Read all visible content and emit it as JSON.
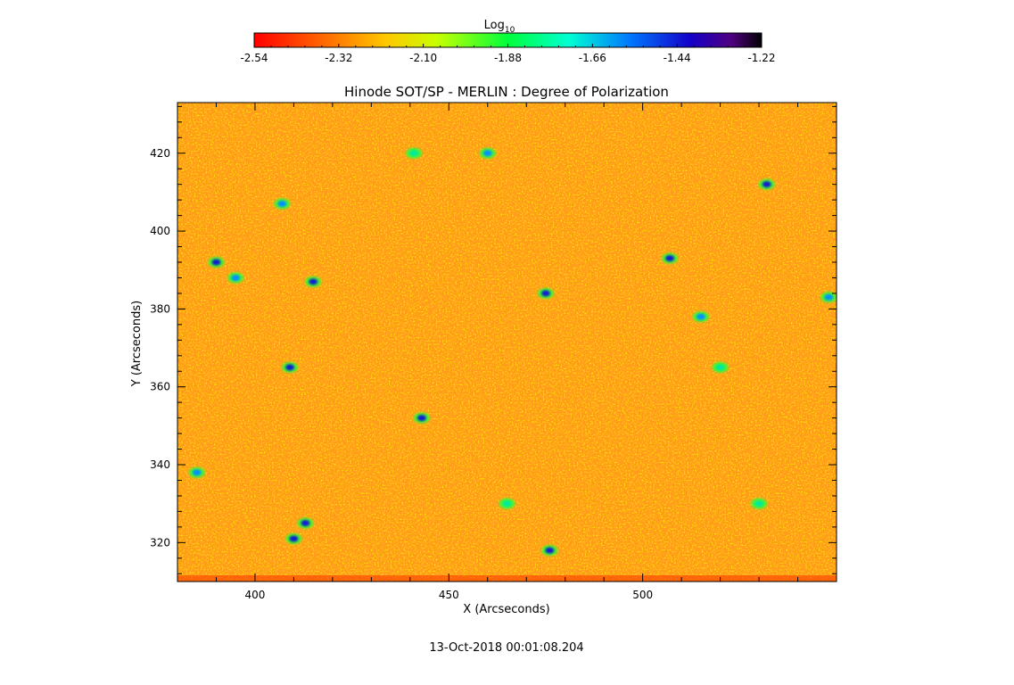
{
  "chart_data": {
    "type": "heatmap",
    "title": "Hinode SOT/SP - MERLIN : Degree of Polarization",
    "xlabel": "X (Arcseconds)",
    "ylabel": "Y (Arcseconds)",
    "xlim": [
      380,
      550
    ],
    "ylim": [
      310,
      433
    ],
    "x_ticks": [
      "400",
      "450",
      "500"
    ],
    "x_tick_values": [
      400,
      450,
      500
    ],
    "y_ticks": [
      "320",
      "340",
      "360",
      "380",
      "400",
      "420"
    ],
    "y_tick_values": [
      320,
      340,
      360,
      380,
      400,
      420
    ],
    "colorbar": {
      "label_base": "Log",
      "label_sub": "10",
      "range": [
        -2.54,
        -1.22
      ],
      "ticks": [
        "-2.54",
        "-2.32",
        "-2.10",
        "-1.88",
        "-1.66",
        "-1.44",
        "-1.22"
      ],
      "tick_values": [
        -2.54,
        -2.32,
        -2.1,
        -1.88,
        -1.66,
        -1.44,
        -1.22
      ],
      "colormap": "rainbow (red-orange-yellow-green-cyan-blue-purple-black)"
    },
    "field_description": "predominantly orange/yellow values near -2.4 with scattered green and blue patches up to about -1.5",
    "patches": [
      {
        "x": 390,
        "y": 392,
        "v": -1.45
      },
      {
        "x": 395,
        "y": 388,
        "v": -1.6
      },
      {
        "x": 407,
        "y": 407,
        "v": -1.6
      },
      {
        "x": 415,
        "y": 387,
        "v": -1.45
      },
      {
        "x": 409,
        "y": 365,
        "v": -1.5
      },
      {
        "x": 413,
        "y": 325,
        "v": -1.5
      },
      {
        "x": 410,
        "y": 321,
        "v": -1.55
      },
      {
        "x": 443,
        "y": 352,
        "v": -1.45
      },
      {
        "x": 475,
        "y": 384,
        "v": -1.5
      },
      {
        "x": 476,
        "y": 318,
        "v": -1.5
      },
      {
        "x": 507,
        "y": 393,
        "v": -1.55
      },
      {
        "x": 515,
        "y": 378,
        "v": -1.6
      },
      {
        "x": 532,
        "y": 412,
        "v": -1.45
      },
      {
        "x": 548,
        "y": 383,
        "v": -1.6
      },
      {
        "x": 441,
        "y": 420,
        "v": -1.75
      },
      {
        "x": 460,
        "y": 420,
        "v": -1.7
      },
      {
        "x": 520,
        "y": 365,
        "v": -1.8
      },
      {
        "x": 385,
        "y": 338,
        "v": -1.7
      },
      {
        "x": 530,
        "y": 330,
        "v": -1.75
      },
      {
        "x": 465,
        "y": 330,
        "v": -1.8
      }
    ]
  },
  "footer": {
    "timestamp": "13-Oct-2018 00:01:08.204"
  }
}
